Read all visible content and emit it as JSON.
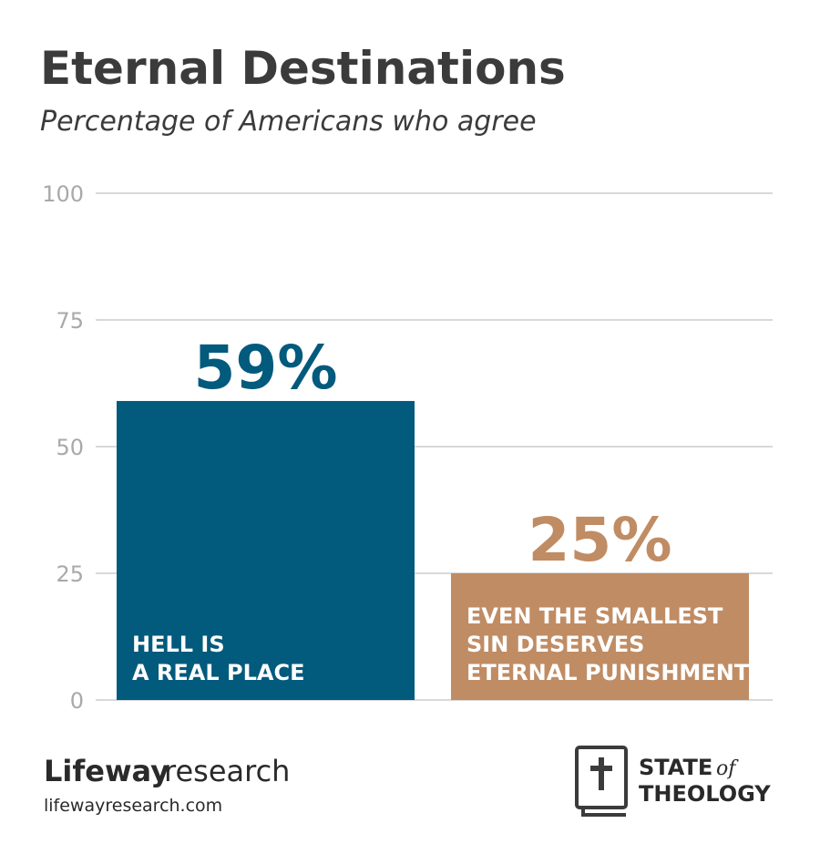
{
  "chart_data": {
    "type": "bar",
    "title": "Eternal Destinations",
    "subtitle": "Percentage of Americans who agree",
    "categories": [
      "HELL IS\nA REAL PLACE",
      "EVEN THE SMALLEST\nSIN DESERVES\nETERNAL PUNISHMENT"
    ],
    "values": [
      59,
      25
    ],
    "value_labels": [
      "59%",
      "25%"
    ],
    "colors": [
      "#025a7d",
      "#c08c64"
    ],
    "ylim": [
      0,
      100
    ],
    "yticks": [
      0,
      25,
      50,
      75,
      100
    ],
    "grid": true
  },
  "footer": {
    "brand_bold": "Lifeway",
    "brand_light": "research",
    "url": "lifewayresearch.com",
    "logo_line1": "STATE",
    "logo_of": "of",
    "logo_line2": "THEOLOGY"
  }
}
